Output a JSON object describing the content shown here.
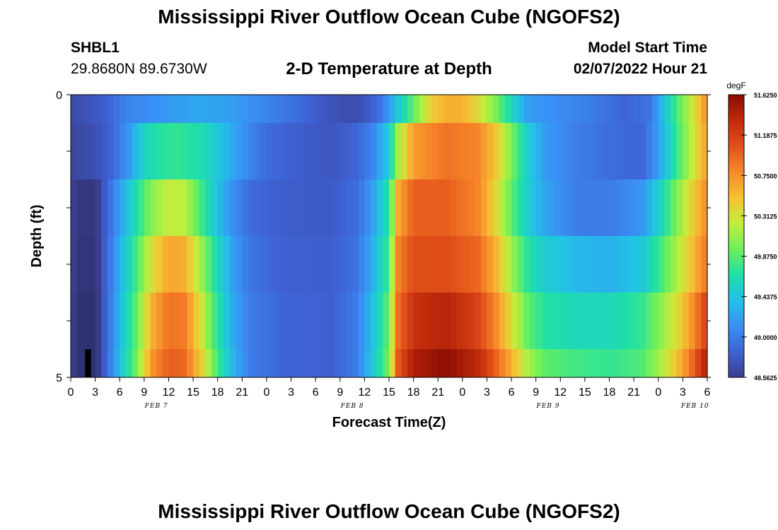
{
  "page": {
    "title": "Mississippi River Outflow Ocean Cube (NGOFS2)",
    "title_repeat": "Mississippi River Outflow Ocean Cube (NGOFS2)",
    "station_id": "SHBL1",
    "coordinates": "29.8680N  89.6730W",
    "subtitle": "2-D Temperature at Depth",
    "model_start_label": "Model Start Time",
    "model_start_value": "02/07/2022 Hour 21"
  },
  "colors": {
    "scale": [
      "#3b3f8f",
      "#3e63d6",
      "#3a8ff5",
      "#22c2e6",
      "#1fdfa8",
      "#6ff05a",
      "#c3ee3d",
      "#f6c233",
      "#f7892a",
      "#e2501a",
      "#c02a0b",
      "#8a0c02"
    ]
  },
  "chart_data": {
    "type": "heatmap",
    "xlabel": "Forecast Time(Z)",
    "ylabel": "Depth (ft)",
    "y_ticks": [
      "0",
      "5"
    ],
    "x_tick_labels": [
      "0",
      "3",
      "6",
      "9",
      "12",
      "15",
      "18",
      "21",
      "0",
      "3",
      "6",
      "9",
      "12",
      "15",
      "18",
      "21",
      "0",
      "3",
      "6",
      "9",
      "12",
      "15",
      "18",
      "21",
      "0",
      "3",
      "6"
    ],
    "date_labels": [
      {
        "text": "FEB 7",
        "at_hour": 10.5
      },
      {
        "text": "FEB 8",
        "at_hour": 34.5
      },
      {
        "text": "FEB 9",
        "at_hour": 58.5
      },
      {
        "text": "FEB 10",
        "at_hour": 76.5
      }
    ],
    "x_range_hours": [
      0,
      78
    ],
    "depth_layers": 5,
    "colorbar": {
      "unit": "degF",
      "range": [
        48.5625,
        51.625
      ],
      "tick_labels": [
        "51.6250",
        "51.1875",
        "50.7500",
        "50.3125",
        "49.8750",
        "49.4375",
        "49.0000",
        "48.5625"
      ]
    },
    "profiles": [
      {
        "layer": "0-1",
        "points": [
          [
            0,
            48.65
          ],
          [
            4,
            48.8
          ],
          [
            7,
            49.05
          ],
          [
            9,
            49.1
          ],
          [
            13,
            49.2
          ],
          [
            16,
            49.25
          ],
          [
            20,
            49.2
          ],
          [
            24,
            49.05
          ],
          [
            28,
            48.9
          ],
          [
            31,
            48.75
          ],
          [
            34,
            48.68
          ],
          [
            36,
            48.72
          ],
          [
            38,
            48.95
          ],
          [
            40,
            49.45
          ],
          [
            42,
            49.9
          ],
          [
            44,
            50.4
          ],
          [
            46,
            50.6
          ],
          [
            48,
            50.6
          ],
          [
            50,
            50.35
          ],
          [
            52,
            50.0
          ],
          [
            54,
            49.6
          ],
          [
            56,
            49.2
          ],
          [
            60,
            49.1
          ],
          [
            64,
            49.0
          ],
          [
            68,
            48.85
          ],
          [
            71,
            48.95
          ],
          [
            73,
            49.5
          ],
          [
            75,
            50.0
          ],
          [
            77,
            50.5
          ],
          [
            78,
            50.8
          ]
        ]
      },
      {
        "layer": "1-2",
        "points": [
          [
            0,
            48.62
          ],
          [
            3,
            48.7
          ],
          [
            5,
            48.85
          ],
          [
            7,
            49.15
          ],
          [
            9,
            49.55
          ],
          [
            11,
            49.7
          ],
          [
            13,
            49.75
          ],
          [
            16,
            49.65
          ],
          [
            18,
            49.45
          ],
          [
            20,
            49.25
          ],
          [
            22,
            49.05
          ],
          [
            24,
            48.9
          ],
          [
            28,
            48.8
          ],
          [
            32,
            48.75
          ],
          [
            35,
            48.85
          ],
          [
            37,
            49.05
          ],
          [
            39,
            49.5
          ],
          [
            40,
            50.1
          ],
          [
            42,
            50.7
          ],
          [
            46,
            50.9
          ],
          [
            50,
            50.8
          ],
          [
            52,
            50.5
          ],
          [
            54,
            50.0
          ],
          [
            56,
            49.5
          ],
          [
            58,
            49.2
          ],
          [
            62,
            49.0
          ],
          [
            66,
            48.9
          ],
          [
            70,
            48.85
          ],
          [
            72,
            49.2
          ],
          [
            74,
            49.7
          ],
          [
            76,
            50.2
          ],
          [
            78,
            50.7
          ]
        ]
      },
      {
        "layer": "2-3",
        "points": [
          [
            0,
            48.6
          ],
          [
            1,
            48.45
          ],
          [
            3,
            48.45
          ],
          [
            4,
            48.75
          ],
          [
            6,
            49.2
          ],
          [
            8,
            49.65
          ],
          [
            10,
            50.05
          ],
          [
            12,
            50.25
          ],
          [
            14,
            50.2
          ],
          [
            16,
            49.8
          ],
          [
            18,
            49.4
          ],
          [
            20,
            49.1
          ],
          [
            22,
            48.9
          ],
          [
            26,
            48.8
          ],
          [
            32,
            48.78
          ],
          [
            35,
            48.9
          ],
          [
            37,
            49.2
          ],
          [
            39,
            49.7
          ],
          [
            40,
            50.6
          ],
          [
            42,
            51.0
          ],
          [
            46,
            51.0
          ],
          [
            50,
            50.8
          ],
          [
            52,
            50.4
          ],
          [
            54,
            49.9
          ],
          [
            56,
            49.5
          ],
          [
            58,
            49.25
          ],
          [
            62,
            49.0
          ],
          [
            66,
            49.0
          ],
          [
            70,
            49.15
          ],
          [
            72,
            49.5
          ],
          [
            74,
            49.95
          ],
          [
            76,
            50.4
          ],
          [
            78,
            50.8
          ]
        ]
      },
      {
        "layer": "3-4",
        "points": [
          [
            0,
            48.6
          ],
          [
            1,
            48.4
          ],
          [
            3,
            48.4
          ],
          [
            4,
            48.75
          ],
          [
            6,
            49.3
          ],
          [
            8,
            49.8
          ],
          [
            10,
            50.35
          ],
          [
            12,
            50.65
          ],
          [
            14,
            50.6
          ],
          [
            16,
            50.1
          ],
          [
            18,
            49.6
          ],
          [
            20,
            49.2
          ],
          [
            22,
            48.95
          ],
          [
            26,
            48.82
          ],
          [
            32,
            48.8
          ],
          [
            35,
            48.95
          ],
          [
            37,
            49.3
          ],
          [
            39,
            49.8
          ],
          [
            40,
            50.8
          ],
          [
            42,
            51.1
          ],
          [
            46,
            51.1
          ],
          [
            50,
            50.95
          ],
          [
            52,
            50.6
          ],
          [
            54,
            50.1
          ],
          [
            56,
            49.7
          ],
          [
            58,
            49.5
          ],
          [
            62,
            49.35
          ],
          [
            66,
            49.3
          ],
          [
            70,
            49.45
          ],
          [
            72,
            49.75
          ],
          [
            74,
            50.1
          ],
          [
            76,
            50.5
          ],
          [
            78,
            50.9
          ]
        ]
      },
      {
        "layer": "4-5",
        "points": [
          [
            0,
            48.6
          ],
          [
            1,
            48.35
          ],
          [
            3,
            48.35
          ],
          [
            4,
            48.75
          ],
          [
            6,
            49.35
          ],
          [
            8,
            49.9
          ],
          [
            10,
            50.6
          ],
          [
            12,
            50.9
          ],
          [
            14,
            50.85
          ],
          [
            16,
            50.3
          ],
          [
            18,
            49.7
          ],
          [
            20,
            49.25
          ],
          [
            22,
            49.0
          ],
          [
            26,
            48.85
          ],
          [
            32,
            48.82
          ],
          [
            35,
            49.0
          ],
          [
            37,
            49.4
          ],
          [
            39,
            49.95
          ],
          [
            40,
            50.9
          ],
          [
            42,
            51.3
          ],
          [
            46,
            51.4
          ],
          [
            50,
            51.15
          ],
          [
            52,
            50.8
          ],
          [
            54,
            50.35
          ],
          [
            56,
            49.9
          ],
          [
            58,
            49.7
          ],
          [
            62,
            49.6
          ],
          [
            66,
            49.6
          ],
          [
            70,
            49.75
          ],
          [
            72,
            50.0
          ],
          [
            74,
            50.3
          ],
          [
            76,
            50.7
          ],
          [
            78,
            51.2
          ]
        ]
      },
      {
        "layer": "4.5-5",
        "points": [
          [
            0,
            48.6
          ],
          [
            1,
            48.35
          ],
          [
            3,
            48.35
          ],
          [
            4,
            48.75
          ],
          [
            6,
            49.4
          ],
          [
            8,
            49.95
          ],
          [
            10,
            50.75
          ],
          [
            12,
            51.0
          ],
          [
            14,
            50.95
          ],
          [
            16,
            50.45
          ],
          [
            18,
            49.8
          ],
          [
            20,
            49.3
          ],
          [
            22,
            49.0
          ],
          [
            26,
            48.85
          ],
          [
            32,
            48.82
          ],
          [
            35,
            49.0
          ],
          [
            37,
            49.45
          ],
          [
            39,
            50.0
          ],
          [
            40,
            51.0
          ],
          [
            42,
            51.45
          ],
          [
            46,
            51.6
          ],
          [
            50,
            51.35
          ],
          [
            52,
            51.0
          ],
          [
            54,
            50.6
          ],
          [
            56,
            50.15
          ],
          [
            58,
            49.9
          ],
          [
            62,
            49.8
          ],
          [
            66,
            49.75
          ],
          [
            70,
            49.85
          ],
          [
            72,
            50.1
          ],
          [
            74,
            50.45
          ],
          [
            76,
            50.9
          ],
          [
            78,
            51.45
          ]
        ]
      }
    ],
    "missing_cells": [
      {
        "hour_start": 1.75,
        "hour_end": 2.5,
        "layer": "4.5-5"
      }
    ]
  }
}
